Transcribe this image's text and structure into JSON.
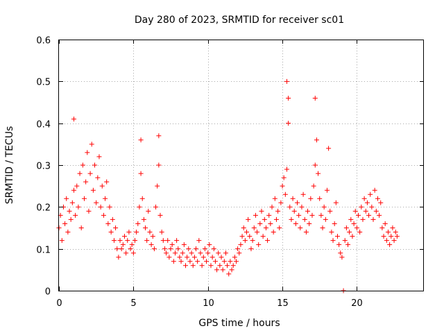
{
  "chart_data": {
    "type": "scatter",
    "title": "Day 280 of 2023, SRMTID for receiver sc01",
    "xlabel": "GPS time / hours",
    "ylabel": "SRMTID / TECUs",
    "xlim": [
      0,
      24.5
    ],
    "ylim": [
      0,
      0.6
    ],
    "x_ticks": [
      0,
      5,
      10,
      15,
      20
    ],
    "x_tick_labels": [
      "0",
      "5",
      "10",
      "15",
      "20"
    ],
    "y_ticks": [
      0,
      0.1,
      0.2,
      0.3,
      0.4,
      0.5,
      0.6
    ],
    "y_tick_labels": [
      "0",
      "0.1",
      "0.2",
      "0.3",
      "0.4",
      "0.5",
      "0.6"
    ],
    "grid": true,
    "marker": "+",
    "color": "#ff0000",
    "series": [
      {
        "name": "sc01",
        "x": [
          0.0,
          0.1,
          0.2,
          0.3,
          0.4,
          0.5,
          0.6,
          0.7,
          0.8,
          0.9,
          1.0,
          1.0,
          1.1,
          1.2,
          1.3,
          1.4,
          1.5,
          1.6,
          1.7,
          1.8,
          1.9,
          2.0,
          2.1,
          2.2,
          2.3,
          2.4,
          2.5,
          2.6,
          2.7,
          2.8,
          2.9,
          3.0,
          3.1,
          3.2,
          3.3,
          3.4,
          3.5,
          3.6,
          3.7,
          3.8,
          3.9,
          4.0,
          4.1,
          4.2,
          4.3,
          4.4,
          4.5,
          4.6,
          4.7,
          4.8,
          4.9,
          5.0,
          5.1,
          5.2,
          5.3,
          5.4,
          5.5,
          5.5,
          5.6,
          5.7,
          5.8,
          5.9,
          6.0,
          6.1,
          6.2,
          6.3,
          6.4,
          6.5,
          6.6,
          6.7,
          6.7,
          6.8,
          6.9,
          7.0,
          7.1,
          7.2,
          7.3,
          7.4,
          7.5,
          7.6,
          7.7,
          7.8,
          7.9,
          8.0,
          8.1,
          8.2,
          8.3,
          8.4,
          8.5,
          8.6,
          8.7,
          8.8,
          8.9,
          9.0,
          9.1,
          9.2,
          9.3,
          9.4,
          9.5,
          9.6,
          9.7,
          9.8,
          9.9,
          10.0,
          10.1,
          10.2,
          10.3,
          10.4,
          10.5,
          10.6,
          10.7,
          10.8,
          10.9,
          11.0,
          11.1,
          11.2,
          11.3,
          11.4,
          11.5,
          11.6,
          11.7,
          11.8,
          11.9,
          12.0,
          12.1,
          12.2,
          12.3,
          12.4,
          12.5,
          12.6,
          12.7,
          12.8,
          12.9,
          13.0,
          13.1,
          13.2,
          13.3,
          13.4,
          13.5,
          13.6,
          13.7,
          13.8,
          13.9,
          14.0,
          14.1,
          14.2,
          14.3,
          14.4,
          14.5,
          14.6,
          14.7,
          14.8,
          14.9,
          15.0,
          15.1,
          15.2,
          15.3,
          15.3,
          15.4,
          15.4,
          15.5,
          15.6,
          15.7,
          15.8,
          15.9,
          16.0,
          16.1,
          16.2,
          16.3,
          16.4,
          16.5,
          16.6,
          16.7,
          16.8,
          16.9,
          17.0,
          17.1,
          17.2,
          17.2,
          17.3,
          17.4,
          17.5,
          17.6,
          17.7,
          17.8,
          17.9,
          18.0,
          18.1,
          18.2,
          18.3,
          18.4,
          18.5,
          18.6,
          18.7,
          18.8,
          18.9,
          19.0,
          19.1,
          19.2,
          19.3,
          19.4,
          19.5,
          19.6,
          19.7,
          19.8,
          19.9,
          20.0,
          20.1,
          20.2,
          20.3,
          20.4,
          20.5,
          20.6,
          20.7,
          20.8,
          20.9,
          21.0,
          21.1,
          21.2,
          21.3,
          21.4,
          21.5,
          21.6,
          21.7,
          21.8,
          21.9,
          22.0,
          22.1,
          22.2,
          22.3,
          22.4,
          22.5,
          22.6,
          22.7
        ],
        "y": [
          0.15,
          0.18,
          0.12,
          0.2,
          0.16,
          0.22,
          0.14,
          0.19,
          0.17,
          0.21,
          0.24,
          0.41,
          0.18,
          0.25,
          0.2,
          0.28,
          0.15,
          0.3,
          0.22,
          0.26,
          0.33,
          0.19,
          0.28,
          0.35,
          0.24,
          0.3,
          0.21,
          0.27,
          0.32,
          0.2,
          0.25,
          0.18,
          0.22,
          0.26,
          0.16,
          0.2,
          0.14,
          0.17,
          0.12,
          0.15,
          0.1,
          0.08,
          0.12,
          0.1,
          0.11,
          0.13,
          0.09,
          0.12,
          0.14,
          0.1,
          0.11,
          0.09,
          0.12,
          0.14,
          0.16,
          0.2,
          0.28,
          0.36,
          0.22,
          0.17,
          0.15,
          0.12,
          0.19,
          0.14,
          0.11,
          0.13,
          0.1,
          0.2,
          0.25,
          0.37,
          0.3,
          0.18,
          0.14,
          0.12,
          0.1,
          0.09,
          0.12,
          0.08,
          0.1,
          0.11,
          0.07,
          0.09,
          0.12,
          0.1,
          0.08,
          0.07,
          0.09,
          0.11,
          0.06,
          0.08,
          0.1,
          0.07,
          0.09,
          0.06,
          0.08,
          0.1,
          0.07,
          0.12,
          0.09,
          0.06,
          0.08,
          0.1,
          0.07,
          0.09,
          0.11,
          0.06,
          0.08,
          0.1,
          0.07,
          0.05,
          0.09,
          0.06,
          0.08,
          0.05,
          0.07,
          0.09,
          0.06,
          0.04,
          0.07,
          0.05,
          0.06,
          0.08,
          0.07,
          0.1,
          0.09,
          0.11,
          0.13,
          0.15,
          0.12,
          0.14,
          0.17,
          0.13,
          0.1,
          0.12,
          0.15,
          0.18,
          0.14,
          0.11,
          0.16,
          0.19,
          0.13,
          0.17,
          0.15,
          0.12,
          0.18,
          0.16,
          0.2,
          0.14,
          0.22,
          0.17,
          0.19,
          0.15,
          0.21,
          0.25,
          0.27,
          0.23,
          0.29,
          0.5,
          0.4,
          0.46,
          0.2,
          0.17,
          0.22,
          0.19,
          0.16,
          0.21,
          0.18,
          0.15,
          0.2,
          0.23,
          0.17,
          0.14,
          0.19,
          0.16,
          0.22,
          0.18,
          0.25,
          0.3,
          0.46,
          0.36,
          0.28,
          0.22,
          0.18,
          0.15,
          0.2,
          0.17,
          0.24,
          0.34,
          0.19,
          0.14,
          0.12,
          0.16,
          0.21,
          0.13,
          0.11,
          0.09,
          0.08,
          0.0,
          0.12,
          0.15,
          0.11,
          0.14,
          0.17,
          0.13,
          0.16,
          0.19,
          0.15,
          0.18,
          0.14,
          0.2,
          0.17,
          0.22,
          0.19,
          0.21,
          0.18,
          0.23,
          0.2,
          0.17,
          0.24,
          0.19,
          0.22,
          0.18,
          0.21,
          0.15,
          0.13,
          0.16,
          0.12,
          0.14,
          0.11,
          0.13,
          0.15,
          0.12,
          0.14,
          0.13
        ]
      }
    ]
  }
}
